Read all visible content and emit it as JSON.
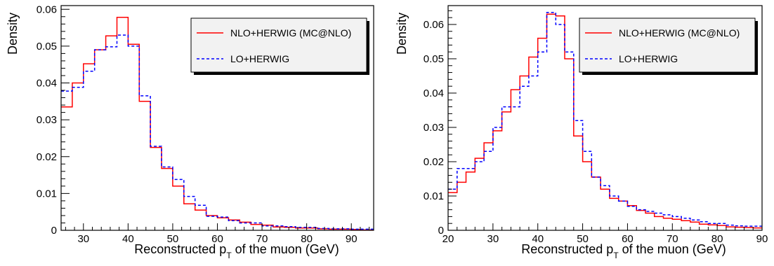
{
  "chart_data": [
    {
      "type": "line",
      "step": true,
      "xlabel": "Reconstructed p",
      "xlabel_sub": "T",
      "xlabel_suffix": " of the muon (GeV)",
      "ylabel": "Density",
      "xlim": [
        25,
        95
      ],
      "ylim": [
        0,
        0.061
      ],
      "xticks": [
        30,
        40,
        50,
        60,
        70,
        80,
        90
      ],
      "yticks": [
        0,
        0.01,
        0.02,
        0.03,
        0.04,
        0.05,
        0.06
      ],
      "ytick_labels": [
        "0",
        "0.01",
        "0.02",
        "0.03",
        "0.04",
        "0.05",
        "0.06"
      ],
      "legend_position": "top-right",
      "x": [
        25,
        27.5,
        30,
        32.5,
        35,
        37.5,
        40,
        42.5,
        45,
        47.5,
        50,
        52.5,
        55,
        57.5,
        60,
        62.5,
        65,
        67.5,
        70,
        72.5,
        75,
        77.5,
        80,
        82.5,
        85,
        87.5,
        90,
        92.5
      ],
      "series": [
        {
          "name": "NLO+HERWIG (MC@NLO)",
          "color": "#ff0000",
          "dash": "solid",
          "values": [
            0.0335,
            0.04,
            0.0452,
            0.049,
            0.0528,
            0.0578,
            0.0505,
            0.035,
            0.0225,
            0.0168,
            0.012,
            0.0072,
            0.0055,
            0.004,
            0.0034,
            0.0028,
            0.0022,
            0.0016,
            0.0014,
            0.0009,
            0.0008,
            0.0006,
            0.0006,
            0.0004,
            0.0003,
            0.0003,
            0.0002,
            0.0001
          ]
        },
        {
          "name": "LO+HERWIG",
          "color": "#0000ff",
          "dash": "dashed",
          "values": [
            0.0378,
            0.0388,
            0.0432,
            0.049,
            0.0498,
            0.053,
            0.05,
            0.0365,
            0.0228,
            0.0172,
            0.0138,
            0.0092,
            0.0068,
            0.0038,
            0.0036,
            0.0026,
            0.002,
            0.002,
            0.0012,
            0.0012,
            0.001,
            0.0008,
            0.0008,
            0.0005,
            0.0004,
            0.0004,
            0.0003,
            0.0003
          ]
        }
      ]
    },
    {
      "type": "line",
      "step": true,
      "xlabel": "Reconstructed p",
      "xlabel_sub": "T",
      "xlabel_suffix": " of the muon (GeV)",
      "ylabel": "Density",
      "xlim": [
        20,
        90
      ],
      "ylim": [
        0,
        0.0655
      ],
      "xticks": [
        20,
        30,
        40,
        50,
        60,
        70,
        80,
        90
      ],
      "yticks": [
        0,
        0.01,
        0.02,
        0.03,
        0.04,
        0.05,
        0.06
      ],
      "ytick_labels": [
        "0",
        "0.01",
        "0.02",
        "0.03",
        "0.04",
        "0.05",
        "0.06"
      ],
      "legend_position": "top-right",
      "x": [
        20,
        22,
        24,
        26,
        28,
        30,
        32,
        34,
        36,
        38,
        40,
        42,
        44,
        46,
        48,
        50,
        52,
        54,
        56,
        58,
        60,
        62,
        64,
        66,
        68,
        70,
        72,
        74,
        76,
        78,
        80,
        82,
        84,
        86,
        88
      ],
      "series": [
        {
          "name": "NLO+HERWIG (MC@NLO)",
          "color": "#ff0000",
          "dash": "solid",
          "values": [
            0.011,
            0.014,
            0.017,
            0.021,
            0.0255,
            0.029,
            0.0345,
            0.041,
            0.045,
            0.0505,
            0.056,
            0.063,
            0.0625,
            0.05,
            0.0275,
            0.02,
            0.0155,
            0.012,
            0.0093,
            0.0085,
            0.0072,
            0.0058,
            0.005,
            0.004,
            0.0035,
            0.0032,
            0.0028,
            0.0024,
            0.0018,
            0.0016,
            0.0014,
            0.001,
            0.0009,
            0.0008,
            0.0007
          ]
        },
        {
          "name": "LO+HERWIG",
          "color": "#0000ff",
          "dash": "dashed",
          "values": [
            0.012,
            0.018,
            0.018,
            0.02,
            0.023,
            0.03,
            0.036,
            0.036,
            0.042,
            0.045,
            0.052,
            0.0635,
            0.06,
            0.052,
            0.032,
            0.023,
            0.0155,
            0.013,
            0.01,
            0.0085,
            0.007,
            0.006,
            0.0055,
            0.005,
            0.0045,
            0.004,
            0.0035,
            0.003,
            0.0025,
            0.002,
            0.002,
            0.0015,
            0.0013,
            0.0012,
            0.0012
          ]
        }
      ]
    }
  ]
}
